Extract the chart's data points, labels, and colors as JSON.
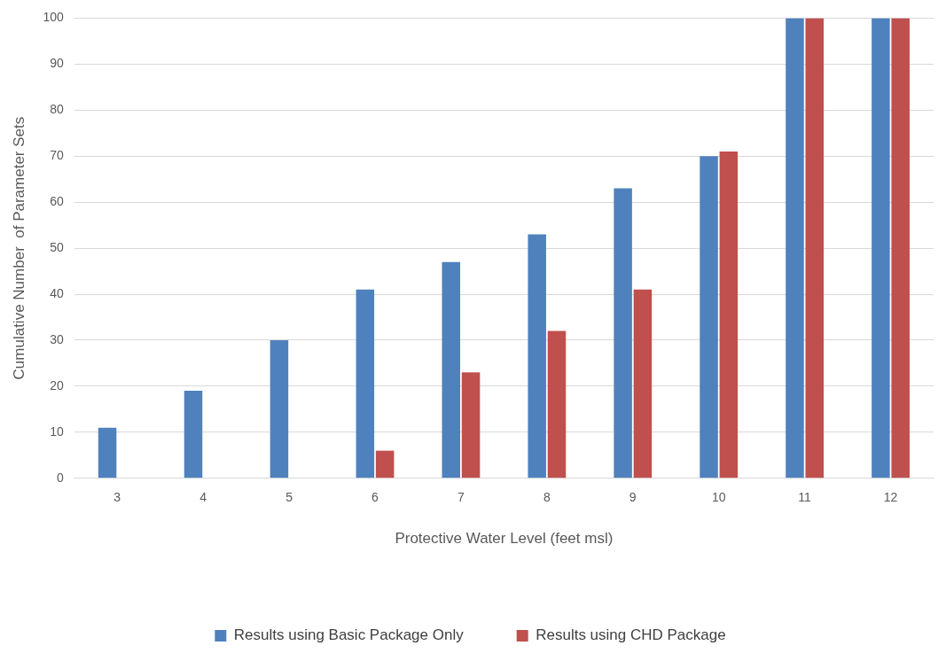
{
  "chart_data": {
    "type": "bar",
    "xlabel": "Protective Water Level (feet msl)",
    "ylabel": "Cumulative Number  of Parameter Sets",
    "categories": [
      "3",
      "4",
      "5",
      "6",
      "7",
      "8",
      "9",
      "10",
      "11",
      "12"
    ],
    "series": [
      {
        "name": "Results using Basic Package Only",
        "color": "#4f81bd",
        "values": [
          11,
          19,
          30,
          41,
          47,
          53,
          63,
          70,
          100,
          100
        ]
      },
      {
        "name": "Results using CHD Package",
        "color": "#c0504d",
        "values": [
          0,
          0,
          0,
          6,
          23,
          32,
          41,
          71,
          100,
          100
        ]
      }
    ],
    "ylim": [
      0,
      100
    ],
    "yticks": [
      0,
      10,
      20,
      30,
      40,
      50,
      60,
      70,
      80,
      90,
      100
    ],
    "grid": "y",
    "legend": "bottom"
  }
}
